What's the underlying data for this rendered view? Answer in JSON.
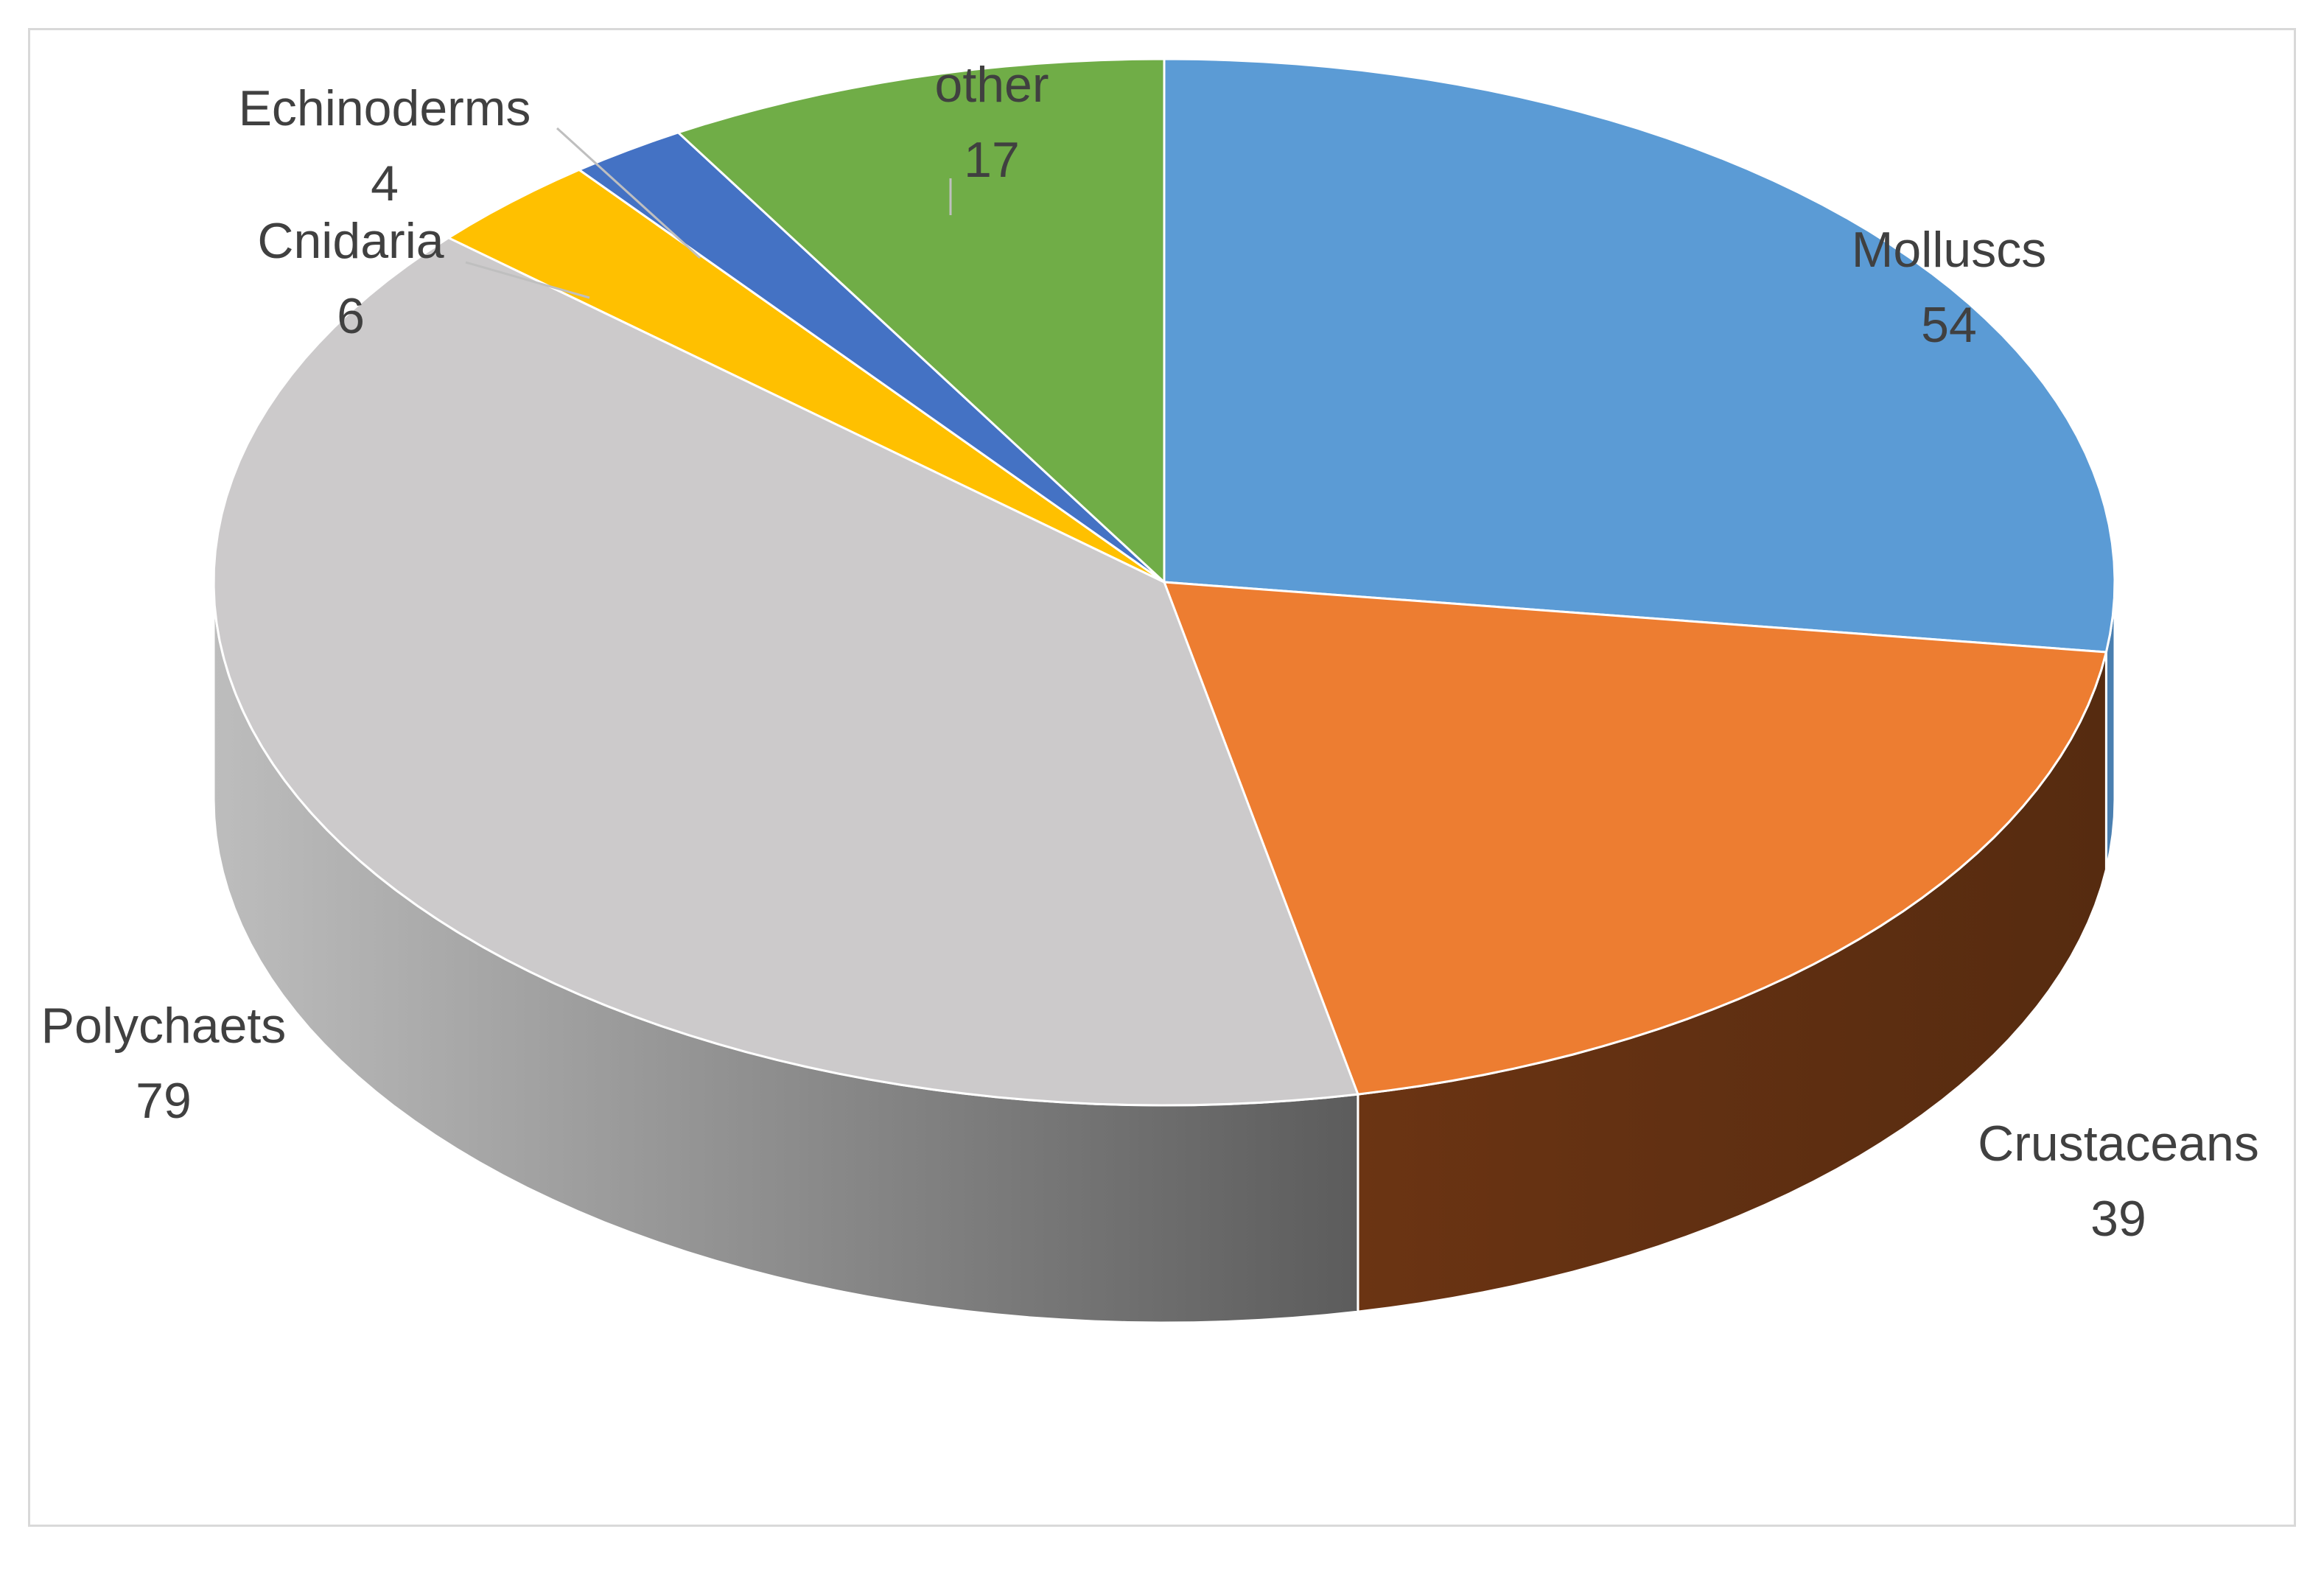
{
  "chart_data": {
    "type": "pie",
    "title": "",
    "categories": [
      "Molluscs",
      "Crustaceans",
      "Polychaets",
      "Cnidaria",
      "Echinoderms",
      "other"
    ],
    "values": [
      54,
      39,
      79,
      6,
      4,
      17
    ],
    "colors": [
      "#5b9bd5",
      "#ed7d31",
      "#cccacb",
      "#ffc000",
      "#4472c4",
      "#70ad47"
    ],
    "data_labels": [
      "Molluscs 54",
      "Crustaceans 39",
      "Polychaets 79",
      "Cnidaria 6",
      "Echinoderms 4",
      "other 17"
    ],
    "legend": "none",
    "style": "3d"
  }
}
